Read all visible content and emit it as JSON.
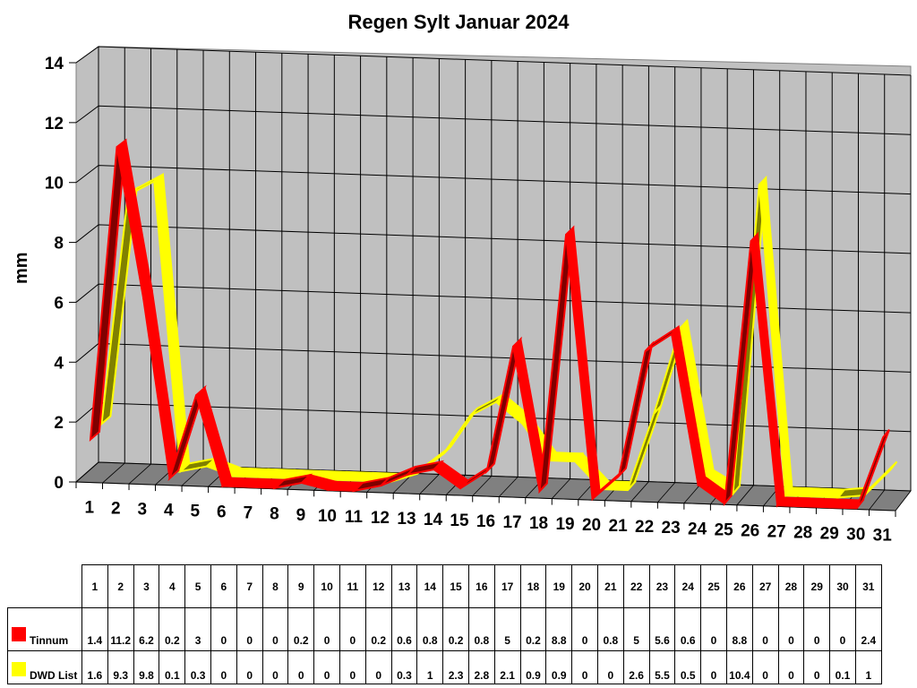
{
  "chart_data": {
    "type": "line",
    "style": "3d-ribbon",
    "title": "Regen Sylt Januar 2024",
    "xlabel": "",
    "ylabel": "mm",
    "ylim": [
      0,
      14
    ],
    "yticks": [
      0,
      2,
      4,
      6,
      8,
      10,
      12,
      14
    ],
    "grid": true,
    "legend_position": "data-table-below",
    "categories": [
      "1",
      "2",
      "3",
      "4",
      "5",
      "6",
      "7",
      "8",
      "9",
      "10",
      "11",
      "12",
      "13",
      "14",
      "15",
      "16",
      "17",
      "18",
      "19",
      "20",
      "21",
      "22",
      "23",
      "24",
      "25",
      "26",
      "27",
      "28",
      "29",
      "30",
      "31"
    ],
    "series": [
      {
        "name": "Tinnum",
        "color": "#ff0000",
        "values": [
          1.4,
          11.2,
          6.2,
          0.2,
          3,
          0,
          0,
          0,
          0.2,
          0,
          0,
          0.2,
          0.6,
          0.8,
          0.2,
          0.8,
          5,
          0.2,
          8.8,
          0,
          0.8,
          5,
          5.6,
          0.6,
          0,
          8.8,
          0,
          0,
          0,
          0,
          2.4
        ]
      },
      {
        "name": "DWD List",
        "color": "#ffff00",
        "values": [
          1.6,
          9.3,
          9.8,
          0.1,
          0.3,
          0,
          0,
          0,
          0,
          0,
          0,
          0,
          0.3,
          1,
          2.3,
          2.8,
          2.1,
          0.9,
          0.9,
          0,
          0,
          2.6,
          5.5,
          0.5,
          0,
          10.4,
          0,
          0,
          0,
          0.1,
          1
        ]
      }
    ]
  },
  "title": "Regen Sylt Januar 2024",
  "ylabel": "mm",
  "table": {
    "rows": [
      {
        "label": "Tinnum",
        "color": "#ff0000"
      },
      {
        "label": "DWD List",
        "color": "#ffff00"
      }
    ]
  }
}
